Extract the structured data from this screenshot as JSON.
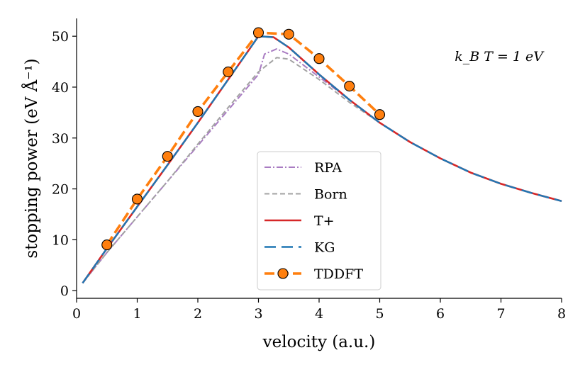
{
  "chart_data": {
    "type": "line",
    "xlabel": "velocity (a.u.)",
    "ylabel": "stopping power (eV Å⁻¹)",
    "xlim": [
      0,
      8
    ],
    "ylim": [
      -1.5,
      53.5
    ],
    "xticks": [
      0,
      1,
      2,
      3,
      4,
      5,
      6,
      7,
      8
    ],
    "yticks": [
      0,
      10,
      20,
      30,
      40,
      50
    ],
    "grid": false,
    "legend_position": "lower-center",
    "annotation": "k_B T = 1 eV",
    "series": [
      {
        "name": "RPA",
        "color": "#a97cc2",
        "dash": "dashdot",
        "x": [
          0.1,
          0.5,
          1.0,
          1.5,
          2.0,
          2.5,
          3.0,
          3.1,
          3.3,
          3.5,
          4.0,
          4.5,
          5.0,
          5.5,
          6.0,
          6.5,
          7.0,
          7.5,
          8.0
        ],
        "y": [
          1.5,
          7.5,
          14.5,
          21.5,
          28.5,
          35.5,
          42.5,
          46.5,
          47.5,
          46.5,
          42.0,
          37.5,
          33.0,
          29.2,
          26.0,
          23.2,
          21.0,
          19.2,
          17.6
        ]
      },
      {
        "name": "Born",
        "color": "#a3a3a3",
        "dash": "dashed",
        "x": [
          0.1,
          0.5,
          1.0,
          1.5,
          2.0,
          2.5,
          3.0,
          3.3,
          3.5,
          4.0,
          4.5,
          5.0,
          5.5,
          6.0,
          6.5,
          7.0,
          7.5,
          8.0
        ],
        "y": [
          1.5,
          7.5,
          14.5,
          21.5,
          28.8,
          36.0,
          43.0,
          45.8,
          45.5,
          41.5,
          37.0,
          33.0,
          29.2,
          26.0,
          23.2,
          21.0,
          19.2,
          17.6
        ]
      },
      {
        "name": "T+",
        "color": "#d62728",
        "dash": "solid",
        "x": [
          0.1,
          0.5,
          1.0,
          1.5,
          2.0,
          2.5,
          3.0,
          3.25,
          3.5,
          4.0,
          4.5,
          5.0,
          5.5,
          6.0,
          6.5,
          7.0,
          7.5,
          8.0
        ],
        "y": [
          1.5,
          8.3,
          16.5,
          24.7,
          33.0,
          41.5,
          50.0,
          49.8,
          47.8,
          42.5,
          37.5,
          33.0,
          29.2,
          26.0,
          23.2,
          21.0,
          19.2,
          17.6
        ]
      },
      {
        "name": "KG",
        "color": "#1f77b4",
        "dash": "longdash",
        "x": [
          0.1,
          0.5,
          1.0,
          1.5,
          2.0,
          2.5,
          3.0,
          3.25,
          3.5,
          4.0,
          4.5,
          5.0,
          5.5,
          6.0,
          6.5,
          7.0,
          7.5,
          8.0
        ],
        "y": [
          1.5,
          8.3,
          16.5,
          24.7,
          33.0,
          41.5,
          50.0,
          49.8,
          47.8,
          42.5,
          37.5,
          33.0,
          29.2,
          26.0,
          23.2,
          21.0,
          19.2,
          17.6
        ]
      },
      {
        "name": "TDDFT",
        "color": "#ff7f0e",
        "dash": "dashed-marker",
        "x": [
          0.5,
          1.0,
          1.5,
          2.0,
          2.5,
          3.0,
          3.5,
          4.0,
          4.5,
          5.0
        ],
        "y": [
          9.0,
          18.0,
          26.4,
          35.2,
          43.0,
          50.7,
          50.4,
          45.6,
          40.2,
          34.6
        ]
      }
    ]
  }
}
